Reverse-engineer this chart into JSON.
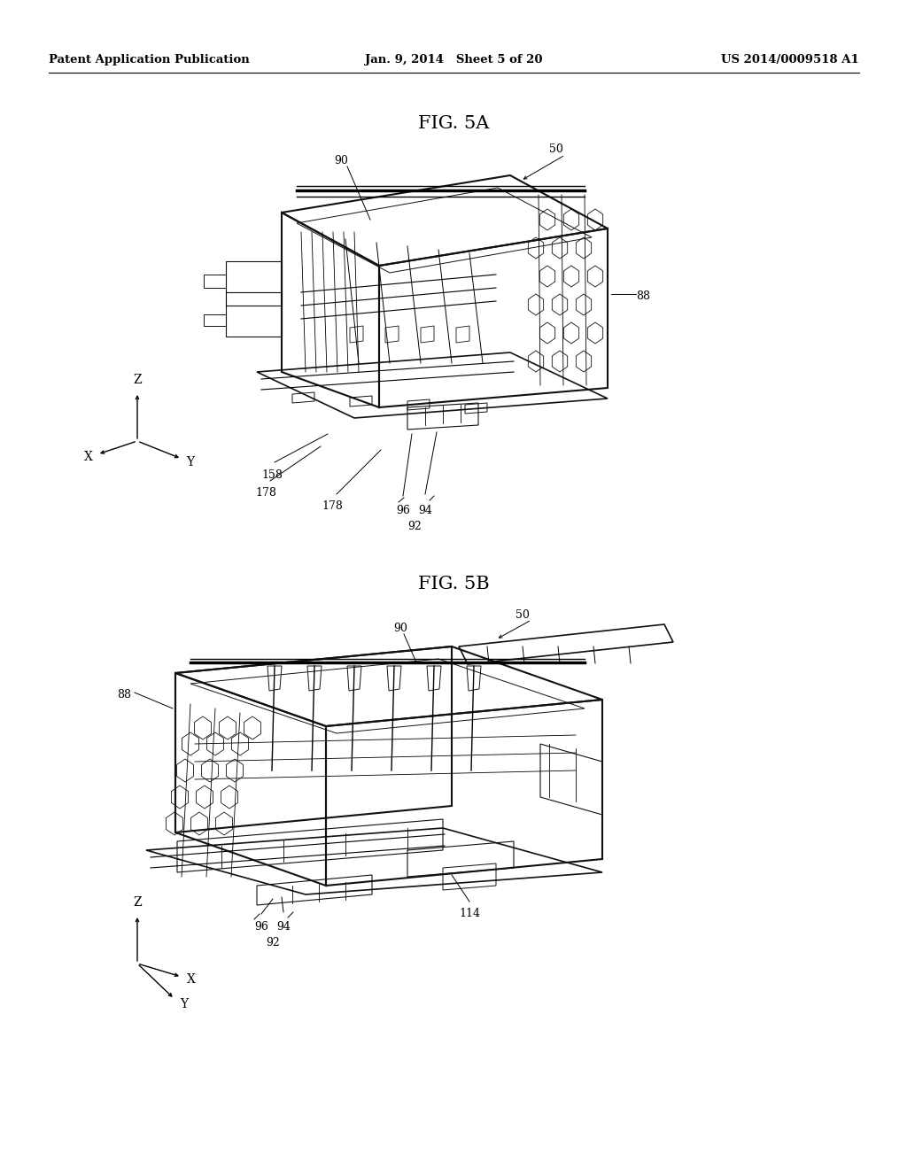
{
  "bg_color": "#ffffff",
  "text_color": "#000000",
  "header_left": "Patent Application Publication",
  "header_center": "Jan. 9, 2014   Sheet 5 of 20",
  "header_right": "US 2014/0009518 A1",
  "fig5a_title": "FIG. 5A",
  "fig5b_title": "FIG. 5B",
  "header_fontsize": 9.5,
  "title_fontsize": 15,
  "annot_fontsize": 9,
  "axis_label_fontsize": 10
}
